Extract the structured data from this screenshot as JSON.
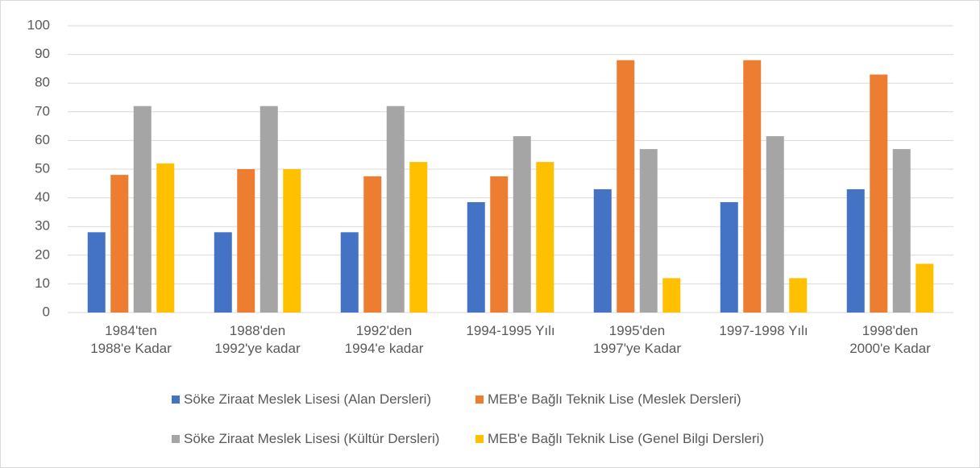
{
  "chart_data": {
    "type": "bar",
    "categories": [
      "1984'ten\n1988'e Kadar",
      "1988'den\n1992'ye kadar",
      "1992'den\n1994'e kadar",
      "1994-1995 Yılı",
      "1995'den\n1997'ye Kadar",
      "1997-1998 Yılı",
      "1998'den\n2000'e Kadar"
    ],
    "series": [
      {
        "name": "Söke Ziraat Meslek Lisesi (Alan Dersleri)",
        "color": "#4472c4",
        "values": [
          28,
          28,
          28,
          38.5,
          43,
          38.5,
          43
        ]
      },
      {
        "name": "MEB'e Bağlı Teknik Lise (Meslek Dersleri)",
        "color": "#ed7d31",
        "values": [
          48,
          50,
          47.5,
          47.5,
          88,
          88,
          83
        ]
      },
      {
        "name": "Söke Ziraat Meslek Lisesi (Kültür Dersleri)",
        "color": "#a5a5a5",
        "values": [
          72,
          72,
          72,
          61.5,
          57,
          61.5,
          57
        ]
      },
      {
        "name": "MEB'e Bağlı Teknik Lise (Genel Bilgi Dersleri)",
        "color": "#ffc000",
        "values": [
          52,
          50,
          52.5,
          52.5,
          12,
          12,
          17
        ]
      }
    ],
    "ylim": [
      0,
      100
    ],
    "yticks": [
      0,
      10,
      20,
      30,
      40,
      50,
      60,
      70,
      80,
      90,
      100
    ],
    "grid": true,
    "legend": "bottom"
  }
}
